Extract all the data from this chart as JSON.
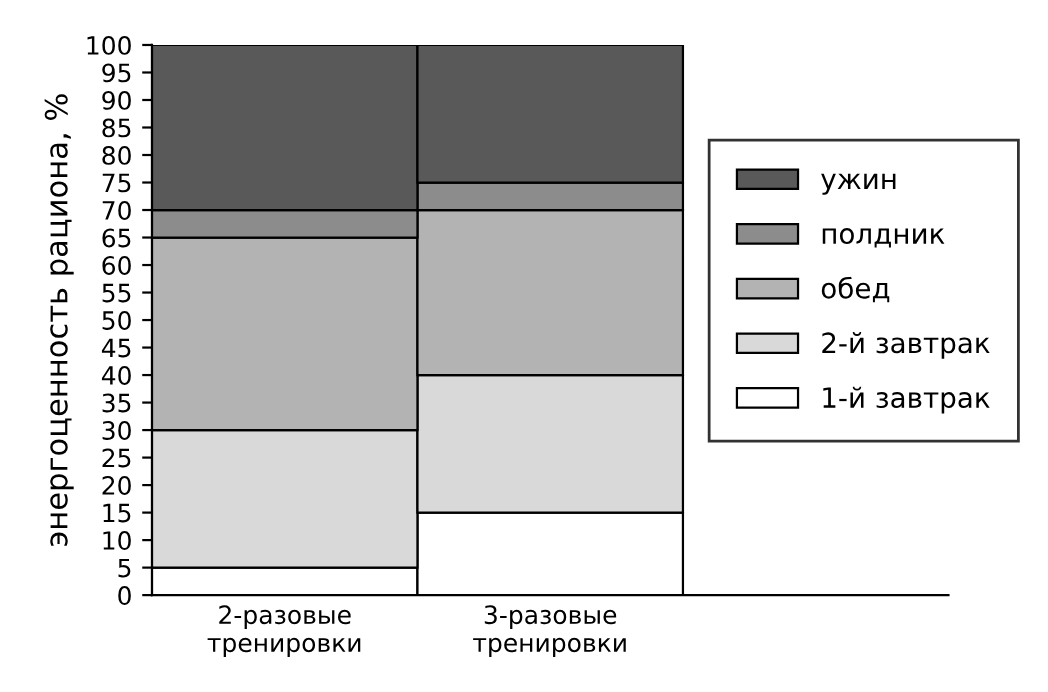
{
  "chart_data": {
    "type": "bar",
    "stacked": true,
    "ylabel": "энергоценность рациона, %",
    "categories": [
      "2-разовые\nтренировки",
      "3-разовые\nтренировки",
      null
    ],
    "series": [
      {
        "name": "1-й завтрак",
        "color": "#ffffff",
        "values": [
          5,
          15,
          null
        ]
      },
      {
        "name": "2-й завтрак",
        "color": "#d9d9d9",
        "values": [
          25,
          25,
          null
        ]
      },
      {
        "name": "обед",
        "color": "#b3b3b3",
        "values": [
          35,
          30,
          null
        ]
      },
      {
        "name": "полдник",
        "color": "#8c8c8c",
        "values": [
          5,
          5,
          null
        ]
      },
      {
        "name": "ужин",
        "color": "#595959",
        "values": [
          30,
          25,
          null
        ]
      }
    ],
    "ylim": [
      0,
      100
    ],
    "yticks": [
      0,
      5,
      10,
      15,
      20,
      25,
      30,
      35,
      40,
      45,
      50,
      55,
      60,
      65,
      70,
      75,
      80,
      85,
      90,
      95,
      100
    ],
    "grid": false,
    "legend": "right"
  }
}
